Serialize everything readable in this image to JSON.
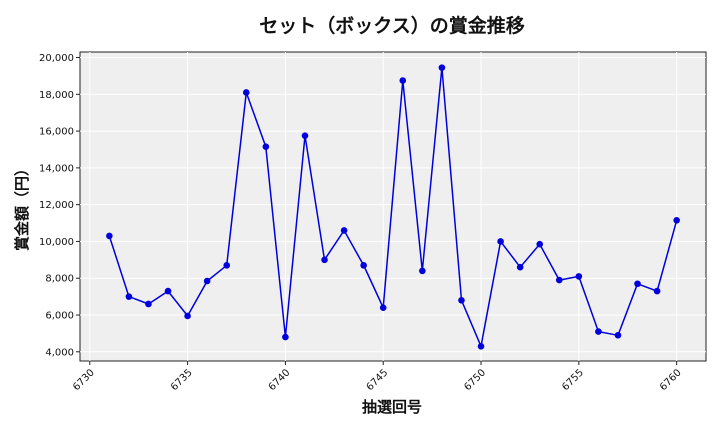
{
  "chart_data": {
    "type": "line",
    "title": "セット（ボックス）の賞金推移",
    "xlabel": "抽選回号",
    "ylabel": "賞金額（円）",
    "xlim": [
      6729.5,
      6761.5
    ],
    "ylim": [
      3500,
      20300
    ],
    "x_ticks": [
      6730,
      6735,
      6740,
      6745,
      6750,
      6755,
      6760
    ],
    "y_ticks": [
      4000,
      6000,
      8000,
      10000,
      12000,
      14000,
      16000,
      18000,
      20000
    ],
    "grid": true,
    "series": [
      {
        "color": "#0000dd",
        "x": [
          6731,
          6732,
          6733,
          6734,
          6735,
          6736,
          6737,
          6738,
          6739,
          6740,
          6741,
          6742,
          6743,
          6744,
          6745,
          6746,
          6747,
          6748,
          6749,
          6750,
          6751,
          6752,
          6753,
          6754,
          6755,
          6756,
          6757,
          6758,
          6759,
          6760
        ],
        "values": [
          10300,
          7000,
          6600,
          7300,
          5950,
          7850,
          8700,
          18100,
          15150,
          4800,
          15750,
          9000,
          10600,
          8700,
          6400,
          18750,
          8400,
          19450,
          6800,
          4300,
          10000,
          8600,
          9850,
          7900,
          8100,
          5100,
          4900,
          7700,
          7300,
          11150
        ]
      }
    ]
  }
}
